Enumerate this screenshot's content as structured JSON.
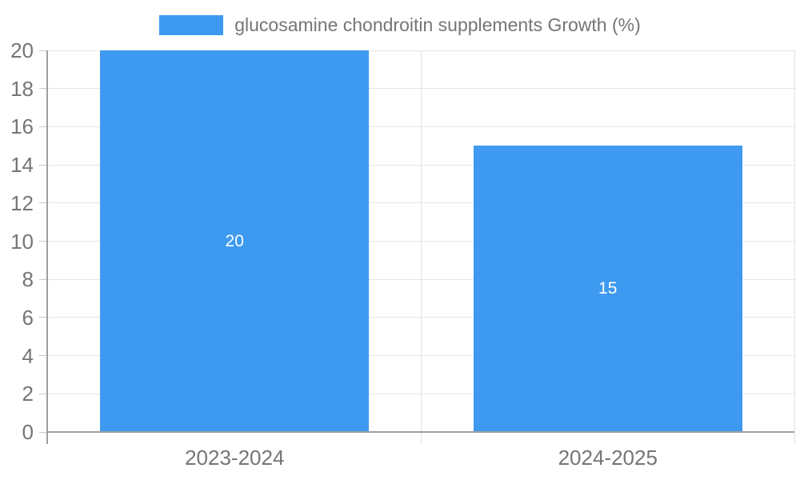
{
  "legend": {
    "label": "glucosamine chondroitin supplements Growth (%)"
  },
  "chart_data": {
    "type": "bar",
    "title": "",
    "xlabel": "",
    "ylabel": "",
    "categories": [
      "2023-2024",
      "2024-2025"
    ],
    "values": [
      20,
      15
    ],
    "series_name": "glucosamine chondroitin supplements Growth (%)",
    "ylim": [
      0,
      20
    ],
    "ytick_step": 2,
    "yticks": [
      0,
      2,
      4,
      6,
      8,
      10,
      12,
      14,
      16,
      18,
      20
    ],
    "grid": true,
    "legend_position": "top",
    "style": {
      "bar_color": "#3d9af0",
      "bar_label_color": "#ffffff",
      "grid_color": "#e6e6e6",
      "axis_color": "#9e9e9e",
      "divider_color": "#e0e0e0",
      "tick_color": "#c6c6c6",
      "text_color": "#757575"
    }
  }
}
